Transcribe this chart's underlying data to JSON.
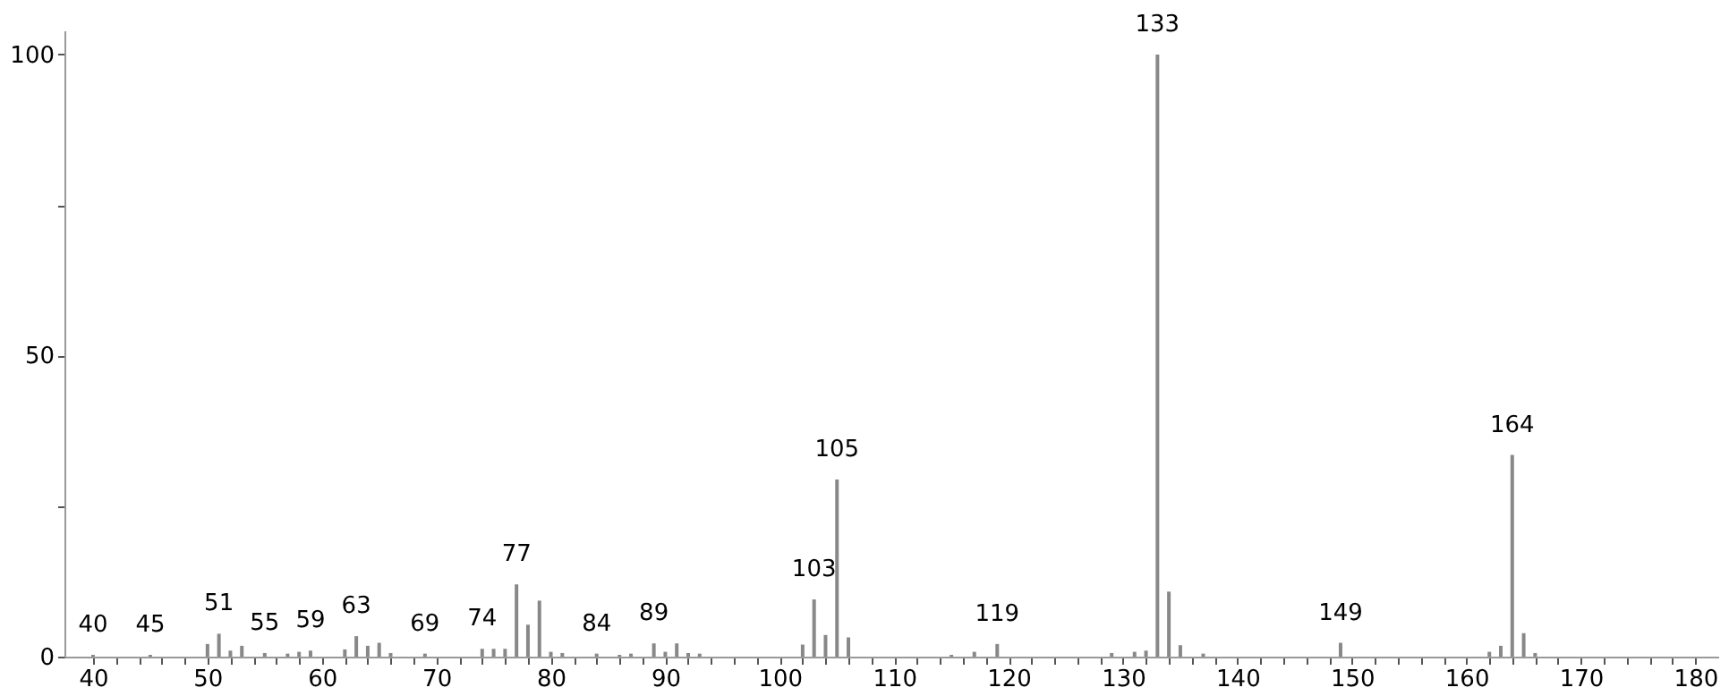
{
  "chart_data": {
    "type": "bar",
    "x": [
      40,
      45,
      50,
      51,
      52,
      53,
      55,
      57,
      58,
      59,
      62,
      63,
      64,
      65,
      66,
      69,
      74,
      75,
      76,
      77,
      78,
      79,
      80,
      81,
      84,
      86,
      87,
      89,
      90,
      91,
      92,
      93,
      102,
      103,
      104,
      105,
      106,
      115,
      117,
      119,
      129,
      131,
      132,
      133,
      134,
      135,
      137,
      149,
      162,
      163,
      164,
      165,
      166
    ],
    "values": [
      0.3,
      0.3,
      2.1,
      3.8,
      1.0,
      1.8,
      0.6,
      0.5,
      0.8,
      1.0,
      1.2,
      3.4,
      1.8,
      2.3,
      0.6,
      0.5,
      1.3,
      1.3,
      1.3,
      12.0,
      5.3,
      9.3,
      0.8,
      0.6,
      0.5,
      0.3,
      0.5,
      2.2,
      0.8,
      2.2,
      0.6,
      0.5,
      2.0,
      9.5,
      3.6,
      29.4,
      3.2,
      0.3,
      0.8,
      2.1,
      0.6,
      0.8,
      1.0,
      100,
      10.8,
      1.9,
      0.5,
      2.3,
      0.8,
      1.8,
      33.5,
      3.9,
      0.6
    ],
    "color": "#888888",
    "xlim": [
      37.5,
      182
    ],
    "xticks": [
      40,
      {
        "value": 42,
        "label": null
      },
      {
        "value": 44,
        "label": null
      },
      {
        "value": 46,
        "label": null
      },
      {
        "value": 48,
        "label": null
      },
      50,
      {
        "value": 52,
        "label": null
      },
      {
        "value": 54,
        "label": null
      },
      {
        "value": 56,
        "label": null
      },
      {
        "value": 58,
        "label": null
      },
      60,
      {
        "value": 62,
        "label": null
      },
      {
        "value": 64,
        "label": null
      },
      {
        "value": 66,
        "label": null
      },
      {
        "value": 68,
        "label": null
      },
      70,
      {
        "value": 72,
        "label": null
      },
      {
        "value": 74,
        "label": null
      },
      {
        "value": 76,
        "label": null
      },
      {
        "value": 78,
        "label": null
      },
      80,
      {
        "value": 82,
        "label": null
      },
      {
        "value": 84,
        "label": null
      },
      {
        "value": 86,
        "label": null
      },
      {
        "value": 88,
        "label": null
      },
      90,
      {
        "value": 92,
        "label": null
      },
      {
        "value": 94,
        "label": null
      },
      {
        "value": 96,
        "label": null
      },
      {
        "value": 98,
        "label": null
      },
      100,
      {
        "value": 102,
        "label": null
      },
      {
        "value": 104,
        "label": null
      },
      {
        "value": 106,
        "label": null
      },
      {
        "value": 108,
        "label": null
      },
      110,
      {
        "value": 112,
        "label": null
      },
      {
        "value": 114,
        "label": null
      },
      {
        "value": 116,
        "label": null
      },
      {
        "value": 118,
        "label": null
      },
      120,
      {
        "value": 122,
        "label": null
      },
      {
        "value": 124,
        "label": null
      },
      {
        "value": 126,
        "label": null
      },
      {
        "value": 128,
        "label": null
      },
      130,
      {
        "value": 132,
        "label": null
      },
      {
        "value": 134,
        "label": null
      },
      {
        "value": 136,
        "label": null
      },
      {
        "value": 138,
        "label": null
      },
      140,
      {
        "value": 142,
        "label": null
      },
      {
        "value": 144,
        "label": null
      },
      {
        "value": 146,
        "label": null
      },
      {
        "value": 148,
        "label": null
      },
      150,
      {
        "value": 152,
        "label": null
      },
      {
        "value": 154,
        "label": null
      },
      {
        "value": 156,
        "label": null
      },
      {
        "value": 158,
        "label": null
      },
      160,
      {
        "value": 162,
        "label": null
      },
      {
        "value": 164,
        "label": null
      },
      {
        "value": 166,
        "label": null
      },
      {
        "value": 168,
        "label": null
      },
      170,
      {
        "value": 172,
        "label": null
      },
      {
        "value": 174,
        "label": null
      },
      {
        "value": 176,
        "label": null
      },
      {
        "value": 178,
        "label": null
      },
      180
    ],
    "ylim": [
      0,
      104
    ],
    "yticks": [
      0,
      {
        "value": 25,
        "label": null
      },
      50,
      {
        "value": 75,
        "label": null
      },
      100
    ],
    "grid": false,
    "annotations": [
      {
        "text": "40",
        "x": 40,
        "y": 0.3
      },
      {
        "text": "45",
        "x": 45,
        "y": 0.3
      },
      {
        "text": "51",
        "x": 51,
        "y": 3.8
      },
      {
        "text": "55",
        "x": 55,
        "y": 0.6
      },
      {
        "text": "59",
        "x": 59,
        "y": 1.0
      },
      {
        "text": "63",
        "x": 63,
        "y": 3.4
      },
      {
        "text": "69",
        "x": 69,
        "y": 0.5
      },
      {
        "text": "74",
        "x": 74,
        "y": 1.3
      },
      {
        "text": "77",
        "x": 77,
        "y": 12.0
      },
      {
        "text": "84",
        "x": 84,
        "y": 0.5
      },
      {
        "text": "89",
        "x": 89,
        "y": 2.2
      },
      {
        "text": "103",
        "x": 103,
        "y": 9.5
      },
      {
        "text": "105",
        "x": 105,
        "y": 29.4
      },
      {
        "text": "119",
        "x": 119,
        "y": 2.1
      },
      {
        "text": "133",
        "x": 133,
        "y": 100
      },
      {
        "text": "149",
        "x": 149,
        "y": 2.3
      },
      {
        "text": "164",
        "x": 164,
        "y": 33.5
      }
    ]
  }
}
